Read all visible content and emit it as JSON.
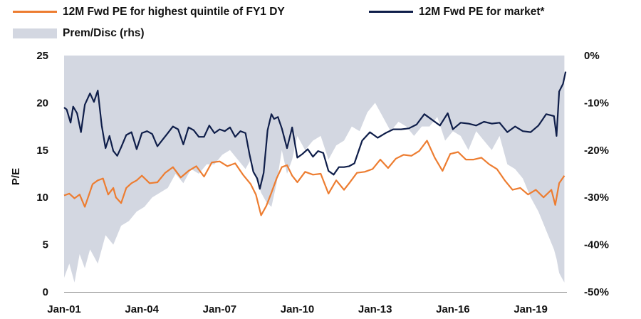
{
  "chart_data": {
    "type": "line",
    "title": "",
    "ylabel": "P/E",
    "y2label": "",
    "ylim": [
      0,
      25
    ],
    "y2lim": [
      -50,
      0
    ],
    "yticks": [
      "0",
      "5",
      "10",
      "15",
      "20",
      "25"
    ],
    "y2ticks": [
      "-50%",
      "-40%",
      "-30%",
      "-20%",
      "-10%",
      "0%"
    ],
    "xticks": [
      "Jan-01",
      "Jan-04",
      "Jan-07",
      "Jan-10",
      "Jan-13",
      "Jan-16",
      "Jan-19"
    ],
    "xtick_values": [
      2001,
      2004,
      2007,
      2010,
      2013,
      2016,
      2019
    ],
    "xlim": [
      2001,
      2020.4
    ],
    "legend_position": "top",
    "series": [
      {
        "name": "12M Fwd PE for highest quintile of FY1 DY",
        "axis": "left",
        "color": "#ED7D31",
        "x": [
          2001.0,
          2001.2,
          2001.4,
          2001.6,
          2001.8,
          2002.0,
          2002.1,
          2002.3,
          2002.5,
          2002.7,
          2002.9,
          2003.0,
          2003.2,
          2003.4,
          2003.6,
          2003.8,
          2004.0,
          2004.3,
          2004.6,
          2004.9,
          2005.2,
          2005.5,
          2005.8,
          2006.1,
          2006.4,
          2006.7,
          2007.0,
          2007.3,
          2007.6,
          2007.9,
          2008.2,
          2008.4,
          2008.6,
          2008.8,
          2009.0,
          2009.2,
          2009.4,
          2009.6,
          2009.8,
          2010.0,
          2010.3,
          2010.6,
          2010.9,
          2011.2,
          2011.5,
          2011.8,
          2012.0,
          2012.3,
          2012.6,
          2012.9,
          2013.2,
          2013.5,
          2013.8,
          2014.1,
          2014.4,
          2014.7,
          2015.0,
          2015.3,
          2015.6,
          2015.9,
          2016.2,
          2016.5,
          2016.8,
          2017.1,
          2017.4,
          2017.7,
          2018.0,
          2018.3,
          2018.6,
          2018.9,
          2019.2,
          2019.5,
          2019.8,
          2019.95,
          2020.1,
          2020.3
        ],
        "values": [
          10.2,
          10.4,
          9.9,
          10.3,
          9.0,
          10.6,
          11.4,
          11.8,
          12.0,
          10.3,
          11.0,
          10.0,
          9.4,
          11.0,
          11.5,
          11.8,
          12.3,
          11.5,
          11.6,
          12.6,
          13.2,
          12.1,
          12.8,
          13.3,
          12.2,
          13.7,
          13.8,
          13.3,
          13.6,
          12.4,
          11.4,
          10.3,
          8.1,
          9.1,
          10.5,
          12.0,
          13.2,
          13.4,
          12.3,
          11.6,
          12.7,
          12.4,
          12.5,
          10.4,
          11.8,
          10.8,
          11.5,
          12.6,
          12.7,
          13.0,
          14.0,
          13.1,
          14.1,
          14.5,
          14.4,
          14.9,
          16.0,
          14.2,
          12.8,
          14.6,
          14.8,
          14.0,
          14.0,
          14.2,
          13.5,
          13.0,
          11.8,
          10.8,
          11.0,
          10.3,
          10.8,
          10.0,
          10.8,
          9.2,
          11.5,
          12.3
        ]
      },
      {
        "name": "12M Fwd PE for market*",
        "axis": "left",
        "color": "#0F1E4A",
        "x": [
          2001.0,
          2001.1,
          2001.25,
          2001.35,
          2001.5,
          2001.65,
          2001.8,
          2002.0,
          2002.15,
          2002.3,
          2002.45,
          2002.6,
          2002.75,
          2002.9,
          2003.05,
          2003.2,
          2003.4,
          2003.6,
          2003.8,
          2004.0,
          2004.2,
          2004.4,
          2004.6,
          2004.8,
          2005.0,
          2005.2,
          2005.4,
          2005.6,
          2005.8,
          2006.0,
          2006.2,
          2006.4,
          2006.6,
          2006.8,
          2007.0,
          2007.2,
          2007.4,
          2007.6,
          2007.8,
          2008.0,
          2008.15,
          2008.3,
          2008.45,
          2008.55,
          2008.7,
          2008.85,
          2009.0,
          2009.1,
          2009.25,
          2009.4,
          2009.6,
          2009.8,
          2010.0,
          2010.2,
          2010.4,
          2010.6,
          2010.8,
          2011.0,
          2011.2,
          2011.4,
          2011.6,
          2011.8,
          2012.0,
          2012.2,
          2012.5,
          2012.8,
          2013.1,
          2013.4,
          2013.7,
          2014.0,
          2014.3,
          2014.6,
          2014.9,
          2015.2,
          2015.5,
          2015.8,
          2016.0,
          2016.3,
          2016.6,
          2016.9,
          2017.2,
          2017.5,
          2017.8,
          2018.1,
          2018.4,
          2018.7,
          2019.0,
          2019.3,
          2019.6,
          2019.9,
          2020.0,
          2020.1,
          2020.25,
          2020.35
        ],
        "values": [
          19.5,
          19.3,
          17.9,
          19.6,
          18.9,
          16.9,
          19.8,
          21.0,
          20.1,
          21.3,
          17.6,
          15.2,
          16.5,
          14.9,
          14.4,
          15.3,
          16.6,
          16.9,
          15.1,
          16.8,
          17.0,
          16.7,
          15.4,
          16.1,
          16.8,
          17.5,
          17.2,
          15.6,
          17.4,
          17.1,
          16.4,
          16.4,
          17.6,
          16.8,
          17.2,
          17.0,
          17.4,
          16.4,
          17.0,
          16.8,
          14.6,
          12.7,
          12.0,
          10.9,
          12.6,
          17.1,
          18.8,
          18.3,
          18.5,
          17.3,
          15.2,
          17.4,
          14.2,
          14.6,
          15.1,
          14.3,
          14.9,
          14.7,
          12.8,
          12.4,
          13.2,
          13.2,
          13.3,
          13.6,
          16.0,
          16.9,
          16.3,
          16.8,
          17.2,
          17.2,
          17.3,
          17.7,
          18.8,
          18.2,
          17.6,
          18.9,
          17.2,
          17.9,
          17.8,
          17.6,
          18.0,
          17.8,
          17.9,
          16.9,
          17.5,
          17.0,
          16.9,
          17.6,
          18.8,
          18.6,
          16.5,
          21.2,
          22.0,
          23.3
        ]
      },
      {
        "name": "Prem/Disc (rhs)",
        "axis": "right",
        "type": "area",
        "color": "#D3D7E1",
        "x": [
          2001.0,
          2001.2,
          2001.4,
          2001.6,
          2001.8,
          2002.0,
          2002.3,
          2002.6,
          2002.9,
          2003.2,
          2003.5,
          2003.8,
          2004.1,
          2004.4,
          2004.7,
          2005.0,
          2005.3,
          2005.6,
          2005.9,
          2006.2,
          2006.5,
          2006.8,
          2007.1,
          2007.4,
          2007.7,
          2008.0,
          2008.2,
          2008.4,
          2008.6,
          2008.8,
          2009.0,
          2009.2,
          2009.4,
          2009.6,
          2009.8,
          2010.0,
          2010.3,
          2010.6,
          2010.9,
          2011.2,
          2011.5,
          2011.8,
          2012.1,
          2012.4,
          2012.7,
          2013.0,
          2013.3,
          2013.6,
          2013.9,
          2014.2,
          2014.5,
          2014.8,
          2015.1,
          2015.4,
          2015.7,
          2016.0,
          2016.3,
          2016.6,
          2016.9,
          2017.2,
          2017.5,
          2017.8,
          2018.1,
          2018.4,
          2018.7,
          2019.0,
          2019.3,
          2019.6,
          2019.9,
          2020.0,
          2020.1,
          2020.2,
          2020.3
        ],
        "values": [
          -47,
          -44,
          -48,
          -42,
          -45,
          -41,
          -44,
          -38,
          -40,
          -36,
          -35,
          -33,
          -32,
          -30,
          -29,
          -28,
          -25,
          -27,
          -24,
          -25,
          -23,
          -23,
          -21,
          -20,
          -22,
          -24,
          -22,
          -26,
          -29,
          -31,
          -32,
          -27,
          -20,
          -25,
          -22,
          -17,
          -20,
          -18,
          -17,
          -22,
          -19,
          -18,
          -15,
          -16,
          -12,
          -10,
          -13,
          -16,
          -14,
          -15,
          -17,
          -15,
          -15,
          -13,
          -18,
          -16,
          -17,
          -20,
          -16,
          -18,
          -20,
          -17,
          -23,
          -24,
          -26,
          -30,
          -33,
          -37,
          -41,
          -43,
          -46,
          -47,
          -48
        ]
      }
    ]
  },
  "legend": {
    "items": [
      {
        "label": "12M Fwd PE for highest quintile of FY1 DY",
        "color": "#ED7D31",
        "kind": "line"
      },
      {
        "label": "12M Fwd PE for market*",
        "color": "#0F1E4A",
        "kind": "line"
      },
      {
        "label": "Prem/Disc (rhs)",
        "color": "#D3D7E1",
        "kind": "area"
      }
    ]
  }
}
